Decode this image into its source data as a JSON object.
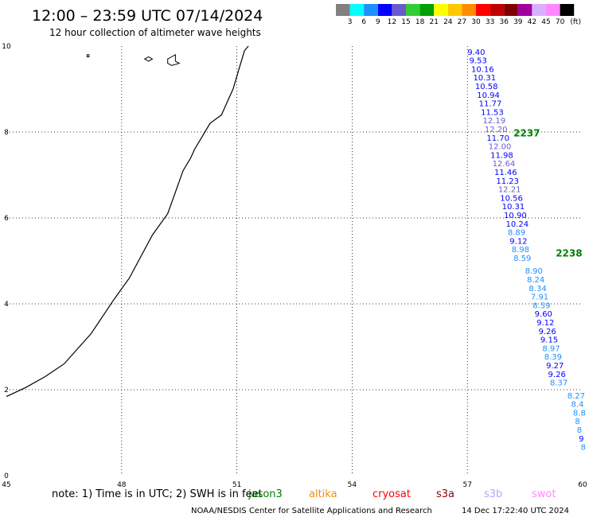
{
  "header": {
    "title": "12:00 – 23:59 UTC 07/14/2024",
    "subtitle": "12 hour collection of altimeter wave heights"
  },
  "colorbar": {
    "colors": [
      "#808080",
      "#00ffff",
      "#1e90ff",
      "#0000ff",
      "#6a5acd",
      "#32cd32",
      "#00a000",
      "#ffff00",
      "#ffc800",
      "#ff8c00",
      "#ff0000",
      "#c00000",
      "#800000",
      "#a000a0",
      "#d8b0ff",
      "#ff88ff",
      "#000000"
    ],
    "labels": [
      "3",
      "6",
      "9",
      "12",
      "15",
      "18",
      "21",
      "24",
      "27",
      "30",
      "33",
      "36",
      "39",
      "42",
      "45",
      "70"
    ],
    "unit": "(ft)"
  },
  "footer": {
    "note": "note: 1) Time is in UTC; 2) SWH is in feet",
    "satellites": [
      {
        "name": "jason3",
        "color": "#008000"
      },
      {
        "name": "altika",
        "color": "#ff8c00"
      },
      {
        "name": "cryosat",
        "color": "#ff0000"
      },
      {
        "name": "s3a",
        "color": "#8b0000"
      },
      {
        "name": "s3b",
        "color": "#c0a0ff"
      },
      {
        "name": "swot",
        "color": "#ff88ff"
      }
    ],
    "credit": "NOAA/NESDIS Center for Satellite Applications and Research",
    "timestamp": "14 Dec 17:22:40 UTC 2024"
  },
  "chart_data": {
    "type": "scatter",
    "xlim": [
      45,
      60
    ],
    "ylim": [
      0,
      10
    ],
    "x_ticks": [
      45,
      48,
      51,
      54,
      57,
      60
    ],
    "y_ticks": [
      0,
      2,
      4,
      6,
      8,
      10
    ],
    "grid": true,
    "color_scale": "colorbar",
    "time_labels": [
      {
        "label": "2237",
        "x": 58.2,
        "y": 7.9
      },
      {
        "label": "2238",
        "x": 59.3,
        "y": 5.1
      }
    ],
    "points": [
      {
        "x": 57.0,
        "y": 9.8,
        "v": "9.40"
      },
      {
        "x": 57.05,
        "y": 9.6,
        "v": "9.53"
      },
      {
        "x": 57.1,
        "y": 9.4,
        "v": "10.16"
      },
      {
        "x": 57.15,
        "y": 9.2,
        "v": "10.31"
      },
      {
        "x": 57.2,
        "y": 9.0,
        "v": "10.58"
      },
      {
        "x": 57.25,
        "y": 8.8,
        "v": "10.94"
      },
      {
        "x": 57.3,
        "y": 8.6,
        "v": "11.77"
      },
      {
        "x": 57.35,
        "y": 8.4,
        "v": "11.53"
      },
      {
        "x": 57.4,
        "y": 8.2,
        "v": "12.19"
      },
      {
        "x": 57.45,
        "y": 8.0,
        "v": "12.20"
      },
      {
        "x": 57.5,
        "y": 7.8,
        "v": "11.70"
      },
      {
        "x": 57.55,
        "y": 7.6,
        "v": "12.00"
      },
      {
        "x": 57.6,
        "y": 7.4,
        "v": "11.98"
      },
      {
        "x": 57.65,
        "y": 7.2,
        "v": "12.64"
      },
      {
        "x": 57.7,
        "y": 7.0,
        "v": "11.46"
      },
      {
        "x": 57.75,
        "y": 6.8,
        "v": "11.23"
      },
      {
        "x": 57.8,
        "y": 6.6,
        "v": "12.21"
      },
      {
        "x": 57.85,
        "y": 6.4,
        "v": "10.56"
      },
      {
        "x": 57.9,
        "y": 6.2,
        "v": "10.31"
      },
      {
        "x": 57.95,
        "y": 6.0,
        "v": "10.90"
      },
      {
        "x": 58.0,
        "y": 5.8,
        "v": "10.24"
      },
      {
        "x": 58.05,
        "y": 5.6,
        "v": "8.89"
      },
      {
        "x": 58.1,
        "y": 5.4,
        "v": "9.12"
      },
      {
        "x": 58.15,
        "y": 5.2,
        "v": "8.98"
      },
      {
        "x": 58.2,
        "y": 5.0,
        "v": "8.59"
      },
      {
        "x": 58.5,
        "y": 4.7,
        "v": "8.90"
      },
      {
        "x": 58.55,
        "y": 4.5,
        "v": "8.24"
      },
      {
        "x": 58.6,
        "y": 4.3,
        "v": "8.34"
      },
      {
        "x": 58.65,
        "y": 4.1,
        "v": "7.91"
      },
      {
        "x": 58.7,
        "y": 3.9,
        "v": "8.59"
      },
      {
        "x": 58.75,
        "y": 3.7,
        "v": "9.60"
      },
      {
        "x": 58.8,
        "y": 3.5,
        "v": "9.12"
      },
      {
        "x": 58.85,
        "y": 3.3,
        "v": "9.26"
      },
      {
        "x": 58.9,
        "y": 3.1,
        "v": "9.15"
      },
      {
        "x": 58.95,
        "y": 2.9,
        "v": "8.97"
      },
      {
        "x": 59.0,
        "y": 2.7,
        "v": "8.39"
      },
      {
        "x": 59.05,
        "y": 2.5,
        "v": "9.27"
      },
      {
        "x": 59.1,
        "y": 2.3,
        "v": "9.26"
      },
      {
        "x": 59.15,
        "y": 2.1,
        "v": "8.37"
      },
      {
        "x": 59.6,
        "y": 1.8,
        "v": "8.27"
      },
      {
        "x": 59.7,
        "y": 1.6,
        "v": "8.4"
      },
      {
        "x": 59.75,
        "y": 1.4,
        "v": "8.8"
      },
      {
        "x": 59.8,
        "y": 1.2,
        "v": "8"
      },
      {
        "x": 59.85,
        "y": 1.0,
        "v": "8"
      },
      {
        "x": 59.9,
        "y": 0.8,
        "v": "9"
      },
      {
        "x": 59.95,
        "y": 0.6,
        "v": "8"
      }
    ],
    "coastline": [
      [
        45.0,
        1.84
      ],
      [
        45.5,
        2.05
      ],
      [
        46.0,
        2.3
      ],
      [
        46.5,
        2.6
      ],
      [
        46.8,
        2.9
      ],
      [
        47.2,
        3.3
      ],
      [
        47.5,
        3.7
      ],
      [
        47.8,
        4.1
      ],
      [
        48.2,
        4.6
      ],
      [
        48.5,
        5.1
      ],
      [
        48.8,
        5.6
      ],
      [
        49.2,
        6.1
      ],
      [
        49.4,
        6.6
      ],
      [
        49.6,
        7.1
      ],
      [
        49.8,
        7.4
      ],
      [
        49.9,
        7.6
      ],
      [
        50.1,
        7.9
      ],
      [
        50.3,
        8.2
      ],
      [
        50.6,
        8.4
      ],
      [
        50.8,
        8.8
      ],
      [
        50.9,
        9.0
      ],
      [
        51.0,
        9.3
      ],
      [
        51.1,
        9.6
      ],
      [
        51.2,
        9.9
      ],
      [
        51.3,
        10.0
      ]
    ],
    "islands": [
      [
        [
          47.1,
          9.75
        ],
        [
          47.1,
          9.8
        ],
        [
          47.15,
          9.8
        ],
        [
          47.15,
          9.75
        ]
      ],
      [
        [
          48.6,
          9.7
        ],
        [
          48.7,
          9.75
        ],
        [
          48.8,
          9.7
        ],
        [
          48.7,
          9.65
        ]
      ],
      [
        [
          49.2,
          9.7
        ],
        [
          49.3,
          9.75
        ],
        [
          49.4,
          9.8
        ],
        [
          49.4,
          9.65
        ],
        [
          49.5,
          9.6
        ],
        [
          49.3,
          9.55
        ],
        [
          49.2,
          9.6
        ]
      ]
    ]
  }
}
